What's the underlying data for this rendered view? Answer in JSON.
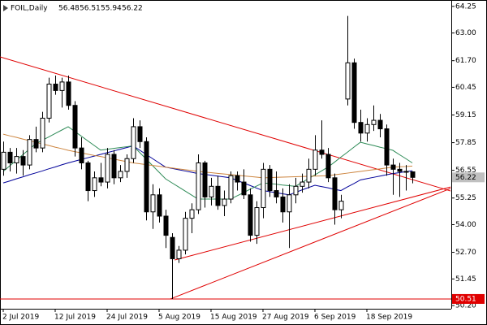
{
  "chart_data": {
    "type": "candlestick",
    "title": "FOIL,Daily",
    "categories": [
      "2 Jul 2019",
      null,
      null,
      null,
      null,
      null,
      null,
      null,
      "12 Jul 2019",
      null,
      null,
      null,
      null,
      null,
      null,
      null,
      "24 Jul 2019",
      null,
      null,
      null,
      null,
      null,
      null,
      null,
      "5 Aug 2019",
      null,
      null,
      null,
      null,
      null,
      null,
      null,
      "15 Aug 2019",
      null,
      null,
      null,
      null,
      null,
      null,
      null,
      "27 Aug 2019",
      null,
      null,
      null,
      null,
      null,
      null,
      null,
      "6 Sep 2019",
      null,
      null,
      null,
      null,
      null,
      null,
      null,
      "18 Sep 2019",
      null,
      null,
      null,
      null,
      null,
      null,
      null
    ],
    "open": [
      56.6,
      57.4,
      56.9,
      57.2,
      56.8,
      58.0,
      57.6,
      59.0,
      60.6,
      60.3,
      60.7,
      59.6,
      57.6,
      56.9,
      55.6,
      56.2,
      56.0,
      57.3,
      56.2,
      56.5,
      57.1,
      58.6,
      57.9,
      54.6,
      55.4,
      54.4,
      53.4,
      52.4,
      52.8,
      54.3,
      54.7,
      56.9,
      55.3,
      55.8,
      54.9,
      55.2,
      56.3,
      56.0,
      55.4,
      53.5,
      54.8,
      56.6,
      55.6,
      55.3,
      54.6,
      55.4,
      55.8,
      56.0,
      56.6,
      57.5,
      57.3,
      56.2,
      54.7,
      59.9,
      61.6,
      58.8,
      58.3,
      58.7,
      58.9,
      58.5,
      56.8,
      56.6,
      56.5,
      56.48
    ],
    "high": [
      57.9,
      57.6,
      57.6,
      57.5,
      58.2,
      58.6,
      59.3,
      60.9,
      61.0,
      60.9,
      61.0,
      59.8,
      58.1,
      57.0,
      56.5,
      56.9,
      57.6,
      57.5,
      56.8,
      57.3,
      59.0,
      58.9,
      58.1,
      55.9,
      55.7,
      54.7,
      53.6,
      53.0,
      54.6,
      55.0,
      57.3,
      57.0,
      56.2,
      56.3,
      55.6,
      56.5,
      56.5,
      56.6,
      55.7,
      55.1,
      56.9,
      56.8,
      56.5,
      55.7,
      55.9,
      56.2,
      56.4,
      57.1,
      58.2,
      58.9,
      57.6,
      56.4,
      55.4,
      63.8,
      61.8,
      59.4,
      59.0,
      59.6,
      59.2,
      58.7,
      57.1,
      56.9,
      56.8,
      56.51
    ],
    "low": [
      56.3,
      56.5,
      56.4,
      56.3,
      56.6,
      57.4,
      57.4,
      58.8,
      60.1,
      59.5,
      59.4,
      57.2,
      56.6,
      55.1,
      55.3,
      55.8,
      55.7,
      55.9,
      56.0,
      56.2,
      56.9,
      57.6,
      54.2,
      53.8,
      54.1,
      52.9,
      50.51,
      52.2,
      52.6,
      53.6,
      54.5,
      54.8,
      54.9,
      54.7,
      54.4,
      55.0,
      55.6,
      55.2,
      53.2,
      53.1,
      54.3,
      55.3,
      55.0,
      54.1,
      52.9,
      55.0,
      55.5,
      55.7,
      56.3,
      57.1,
      56.0,
      54.0,
      54.3,
      59.6,
      58.5,
      57.9,
      57.9,
      58.4,
      58.1,
      56.3,
      55.4,
      55.3,
      55.6,
      55.94
    ],
    "close": [
      57.4,
      56.9,
      57.2,
      56.8,
      58.0,
      57.6,
      59.0,
      60.6,
      60.3,
      60.7,
      59.6,
      57.6,
      56.9,
      55.6,
      56.2,
      56.0,
      57.3,
      56.2,
      56.5,
      57.1,
      58.6,
      57.9,
      54.6,
      55.4,
      54.4,
      53.5,
      52.4,
      52.8,
      54.3,
      54.7,
      56.9,
      55.3,
      55.8,
      54.9,
      55.2,
      56.3,
      56.0,
      55.4,
      53.5,
      54.8,
      56.6,
      55.6,
      55.3,
      54.6,
      55.4,
      55.8,
      56.0,
      56.6,
      57.5,
      57.3,
      56.2,
      54.7,
      55.1,
      61.6,
      58.8,
      58.3,
      58.7,
      58.9,
      58.5,
      56.8,
      56.6,
      56.5,
      56.48,
      56.22
    ],
    "series": [
      {
        "color": "#000099",
        "values": [
          55.96,
          56.05,
          56.15,
          56.24,
          56.34,
          56.43,
          56.52,
          56.62,
          56.71,
          56.81,
          56.9,
          56.98,
          57.06,
          57.14,
          57.22,
          57.3,
          57.38,
          57.46,
          57.54,
          57.62,
          57.7,
          57.5,
          57.3,
          57.1,
          56.9,
          56.7,
          56.64,
          56.58,
          56.52,
          56.46,
          56.4,
          56.36,
          56.32,
          56.28,
          56.24,
          56.2,
          56.08,
          55.96,
          55.84,
          55.72,
          55.6,
          55.55,
          55.5,
          55.45,
          55.4,
          55.51,
          55.63,
          55.74,
          55.85,
          55.79,
          55.73,
          55.66,
          55.6,
          55.77,
          55.93,
          56.1,
          56.16,
          56.22,
          56.28,
          56.34,
          56.4,
          56.44,
          56.49,
          56.53
        ]
      },
      {
        "color": "#2e8b57",
        "values": [
          56.5,
          56.76,
          57.02,
          57.28,
          57.54,
          57.8,
          57.96,
          58.12,
          58.28,
          58.44,
          58.6,
          58.38,
          58.16,
          57.94,
          57.72,
          57.5,
          57.54,
          57.58,
          57.62,
          57.66,
          57.7,
          57.39,
          57.08,
          56.77,
          56.46,
          56.15,
          55.96,
          55.77,
          55.58,
          55.39,
          55.2,
          55.2,
          55.2,
          55.2,
          55.2,
          55.2,
          55.35,
          55.5,
          55.66,
          55.81,
          55.96,
          55.93,
          55.9,
          55.86,
          55.83,
          55.8,
          55.98,
          56.16,
          56.34,
          56.52,
          56.7,
          56.93,
          57.17,
          57.4,
          57.64,
          57.87,
          57.79,
          57.72,
          57.64,
          57.57,
          57.49,
          57.29,
          57.1,
          56.9
        ]
      },
      {
        "color": "#cd853f",
        "values": [
          58.25,
          58.17,
          58.1,
          58.02,
          57.95,
          57.87,
          57.79,
          57.72,
          57.64,
          57.57,
          57.49,
          57.43,
          57.37,
          57.31,
          57.25,
          57.2,
          57.14,
          57.08,
          57.02,
          56.96,
          56.9,
          56.86,
          56.82,
          56.78,
          56.74,
          56.7,
          56.66,
          56.62,
          56.58,
          56.54,
          56.5,
          56.47,
          56.44,
          56.41,
          56.38,
          56.35,
          56.32,
          56.29,
          56.26,
          56.23,
          56.2,
          56.21,
          56.22,
          56.23,
          56.24,
          56.25,
          56.26,
          56.27,
          56.28,
          56.29,
          56.3,
          56.34,
          56.38,
          56.42,
          56.46,
          56.5,
          56.54,
          56.58,
          56.62,
          56.66,
          56.7,
          56.72,
          56.73,
          56.75
        ]
      }
    ],
    "trendlines": [
      {
        "color": "#e00000",
        "x": [
          -0.5,
          68.9
        ],
        "y": [
          61.88,
          55.58
        ]
      },
      {
        "color": "#e00000",
        "x": [
          26.4,
          68.9
        ],
        "y": [
          52.34,
          55.77
        ]
      },
      {
        "color": "#e00000",
        "x": [
          25.75,
          68.9
        ],
        "y": [
          50.51,
          55.7
        ]
      }
    ],
    "hline": {
      "value": 50.51,
      "color": "#e00000"
    },
    "ylim": [
      50.05,
      64.55
    ],
    "yticks": [
      64.25,
      {
        "value": 63,
        "label": "63.00"
      },
      {
        "value": 61.7,
        "label": "61.70"
      },
      60.45,
      59.15,
      57.85,
      56.55,
      55.25,
      {
        "value": 54,
        "label": "54.00"
      },
      {
        "value": 52.7,
        "label": "52.70"
      },
      51.45,
      {
        "value": 50.2,
        "label": "50.20"
      }
    ]
  }
}
